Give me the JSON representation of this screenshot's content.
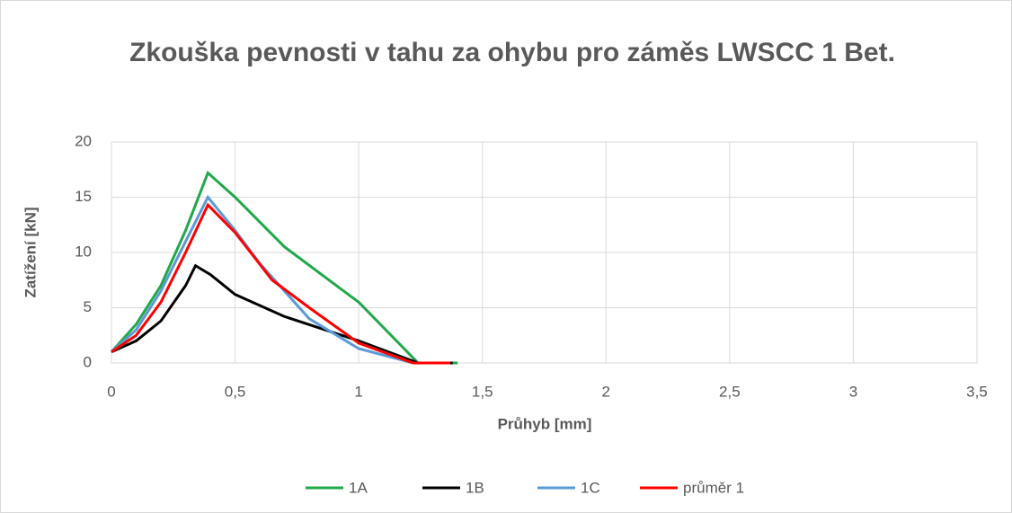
{
  "chart_data": {
    "type": "line",
    "title": "Zkouška pevnosti v tahu za ohybu pro záměs LWSCC 1 Bet.",
    "x_label": "Průhyb [mm]",
    "y_label": "Zatížení [kN]",
    "xlim": [
      0,
      3.5
    ],
    "xticks": [
      0,
      {
        "value": 0.5,
        "label": "0,5"
      },
      1,
      {
        "value": 1.5,
        "label": "1,5"
      },
      2,
      {
        "value": 2.5,
        "label": "2,5"
      },
      3,
      {
        "value": 3.5,
        "label": "3,5"
      }
    ],
    "ylim": [
      0,
      20
    ],
    "yticks": [
      0,
      5,
      10,
      15,
      20
    ],
    "grid": true,
    "legend": "bottom",
    "series": [
      {
        "name": "1A",
        "color": "#21a84a",
        "x": [
          0,
          0.1,
          0.2,
          0.3,
          0.39,
          0.5,
          0.7,
          1,
          1.24,
          1.4
        ],
        "values": [
          1,
          3.5,
          7,
          12,
          17.2,
          15,
          10.5,
          5.5,
          0,
          0
        ]
      },
      {
        "name": "1B",
        "color": "#000000",
        "x": [
          0,
          0.1,
          0.2,
          0.3,
          0.34,
          0.4,
          0.5,
          0.7,
          1,
          1.24,
          1.38
        ],
        "values": [
          1,
          2,
          3.8,
          7,
          8.8,
          8,
          6.2,
          4.2,
          2,
          0,
          0
        ]
      },
      {
        "name": "1C",
        "color": "#5b9bd5",
        "x": [
          0,
          0.1,
          0.2,
          0.3,
          0.39,
          0.5,
          0.6,
          0.8,
          1,
          1.22
        ],
        "values": [
          1,
          3,
          6.5,
          11,
          15,
          12,
          9,
          4,
          1.3,
          0
        ]
      },
      {
        "name": "průměr 1",
        "color": "#ff0000",
        "x": [
          0,
          0.1,
          0.2,
          0.3,
          0.39,
          0.5,
          0.65,
          0.8,
          1,
          1.22,
          1.37
        ],
        "values": [
          1,
          2.5,
          5.5,
          10,
          14.3,
          11.8,
          7.5,
          5,
          1.8,
          0,
          0
        ]
      }
    ]
  }
}
